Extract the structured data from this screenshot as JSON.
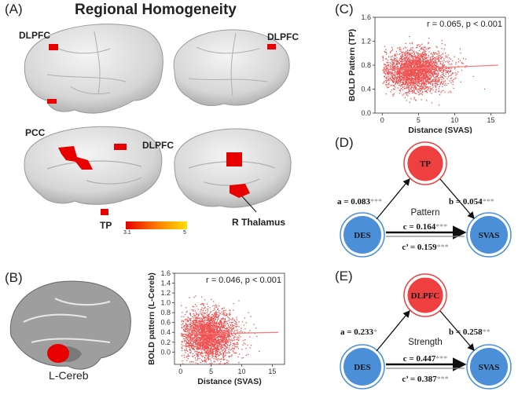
{
  "panel_a": {
    "label": "(A)",
    "title": "Regional Homogeneity",
    "brain_labels": {
      "dlpfc_left": "DLPFC",
      "dlpfc_right": "DLPFC",
      "pcc": "PCC",
      "dlpfc_medial": "DLPFC",
      "tp": "TP",
      "r_thalamus": "R Thalamus"
    },
    "colorbar": {
      "min_label": "3.1",
      "max_label": "5",
      "colors": [
        "#e60000",
        "#ffe000"
      ]
    }
  },
  "panel_b": {
    "label": "(B)",
    "region_label": "L-Cereb",
    "chart_data": {
      "type": "scatter",
      "xlabel": "Distance (SVAS)",
      "ylabel": "BOLD pattern (L-Cereb)",
      "xlim": [
        -1,
        17
      ],
      "ylim": [
        -0.25,
        1.6
      ],
      "xticks": [
        0,
        5,
        10,
        15
      ],
      "yticks": [
        0.0,
        0.2,
        0.4,
        0.6,
        0.8,
        1.0,
        1.2,
        1.4,
        1.6
      ],
      "annotation": "r = 0.046, p < 0.001",
      "point_color": "#f05050",
      "regression": {
        "x": [
          0,
          16
        ],
        "y": [
          0.36,
          0.4
        ]
      },
      "point_cloud": {
        "x_center": 4.5,
        "x_spread": 2.3,
        "y_center": 0.35,
        "y_spread": 0.25
      }
    }
  },
  "panel_c": {
    "label": "(C)",
    "chart_data": {
      "type": "scatter",
      "xlabel": "Distance (SVAS)",
      "ylabel": "BOLD Pattern (TP)",
      "xlim": [
        -1,
        17
      ],
      "ylim": [
        0.0,
        1.6
      ],
      "xticks": [
        0,
        5,
        10,
        15
      ],
      "yticks": [
        0.0,
        0.4,
        0.8,
        1.2,
        1.6
      ],
      "annotation": "r = 0.065, p < 0.001",
      "point_color": "#f05050",
      "regression": {
        "x": [
          0,
          16
        ],
        "y": [
          0.72,
          0.8
        ]
      },
      "point_cloud": {
        "x_center": 4.5,
        "x_spread": 2.3,
        "y_center": 0.72,
        "y_spread": 0.17
      }
    }
  },
  "panel_d": {
    "label": "(D)",
    "mediator": "TP",
    "left": "DES",
    "right": "SVAS",
    "title": "Pattern",
    "a": "a = 0.083",
    "a_sig": "***",
    "b": "b = 0.054",
    "b_sig": "***",
    "c": "c = 0.164",
    "c_sig": "***",
    "c_prime": "c’ = 0.159",
    "c_prime_sig": "***"
  },
  "panel_e": {
    "label": "(E)",
    "mediator": "DLPFC",
    "left": "DES",
    "right": "SVAS",
    "title": "Strength",
    "a": "a = 0.233",
    "a_sig": "*",
    "b": "b = 0.258",
    "b_sig": "**",
    "c": "c = 0.447",
    "c_sig": "***",
    "c_prime": "c’ = 0.387",
    "c_prime_sig": "***"
  },
  "colors": {
    "red_node": "#ee4040",
    "blue_node": "#4a8fd8",
    "brain_gray": "#d9d9d9",
    "activation": "#e80000"
  }
}
